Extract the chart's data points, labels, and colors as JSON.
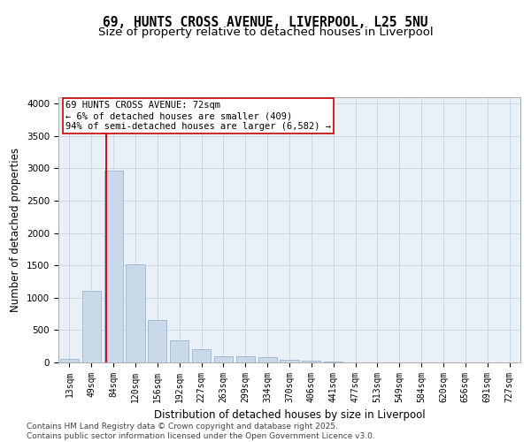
{
  "title_line1": "69, HUNTS CROSS AVENUE, LIVERPOOL, L25 5NU",
  "title_line2": "Size of property relative to detached houses in Liverpool",
  "xlabel": "Distribution of detached houses by size in Liverpool",
  "ylabel": "Number of detached properties",
  "bar_labels": [
    "13sqm",
    "49sqm",
    "84sqm",
    "120sqm",
    "156sqm",
    "192sqm",
    "227sqm",
    "263sqm",
    "299sqm",
    "334sqm",
    "370sqm",
    "406sqm",
    "441sqm",
    "477sqm",
    "513sqm",
    "549sqm",
    "584sqm",
    "620sqm",
    "656sqm",
    "691sqm",
    "727sqm"
  ],
  "bar_values": [
    60,
    1110,
    2970,
    1520,
    650,
    340,
    210,
    90,
    90,
    80,
    40,
    30,
    15,
    5,
    3,
    2,
    1,
    1,
    0,
    0,
    0
  ],
  "bar_color": "#c9d9ea",
  "bar_edge_color": "#9ab5cc",
  "vline_color": "#cc0000",
  "annotation_text": "69 HUNTS CROSS AVENUE: 72sqm\n← 6% of detached houses are smaller (409)\n94% of semi-detached houses are larger (6,582) →",
  "annotation_box_color": "#cc0000",
  "ylim_max": 4100,
  "yticks": [
    0,
    500,
    1000,
    1500,
    2000,
    2500,
    3000,
    3500,
    4000
  ],
  "grid_color": "#c8d4e4",
  "background_color": "#eaf0f8",
  "footer_line1": "Contains HM Land Registry data © Crown copyright and database right 2025.",
  "footer_line2": "Contains public sector information licensed under the Open Government Licence v3.0.",
  "title_fontsize": 10.5,
  "subtitle_fontsize": 9.5,
  "tick_fontsize": 7,
  "ylabel_fontsize": 8.5,
  "xlabel_fontsize": 8.5,
  "footer_fontsize": 6.5,
  "annotation_fontsize": 7.5
}
